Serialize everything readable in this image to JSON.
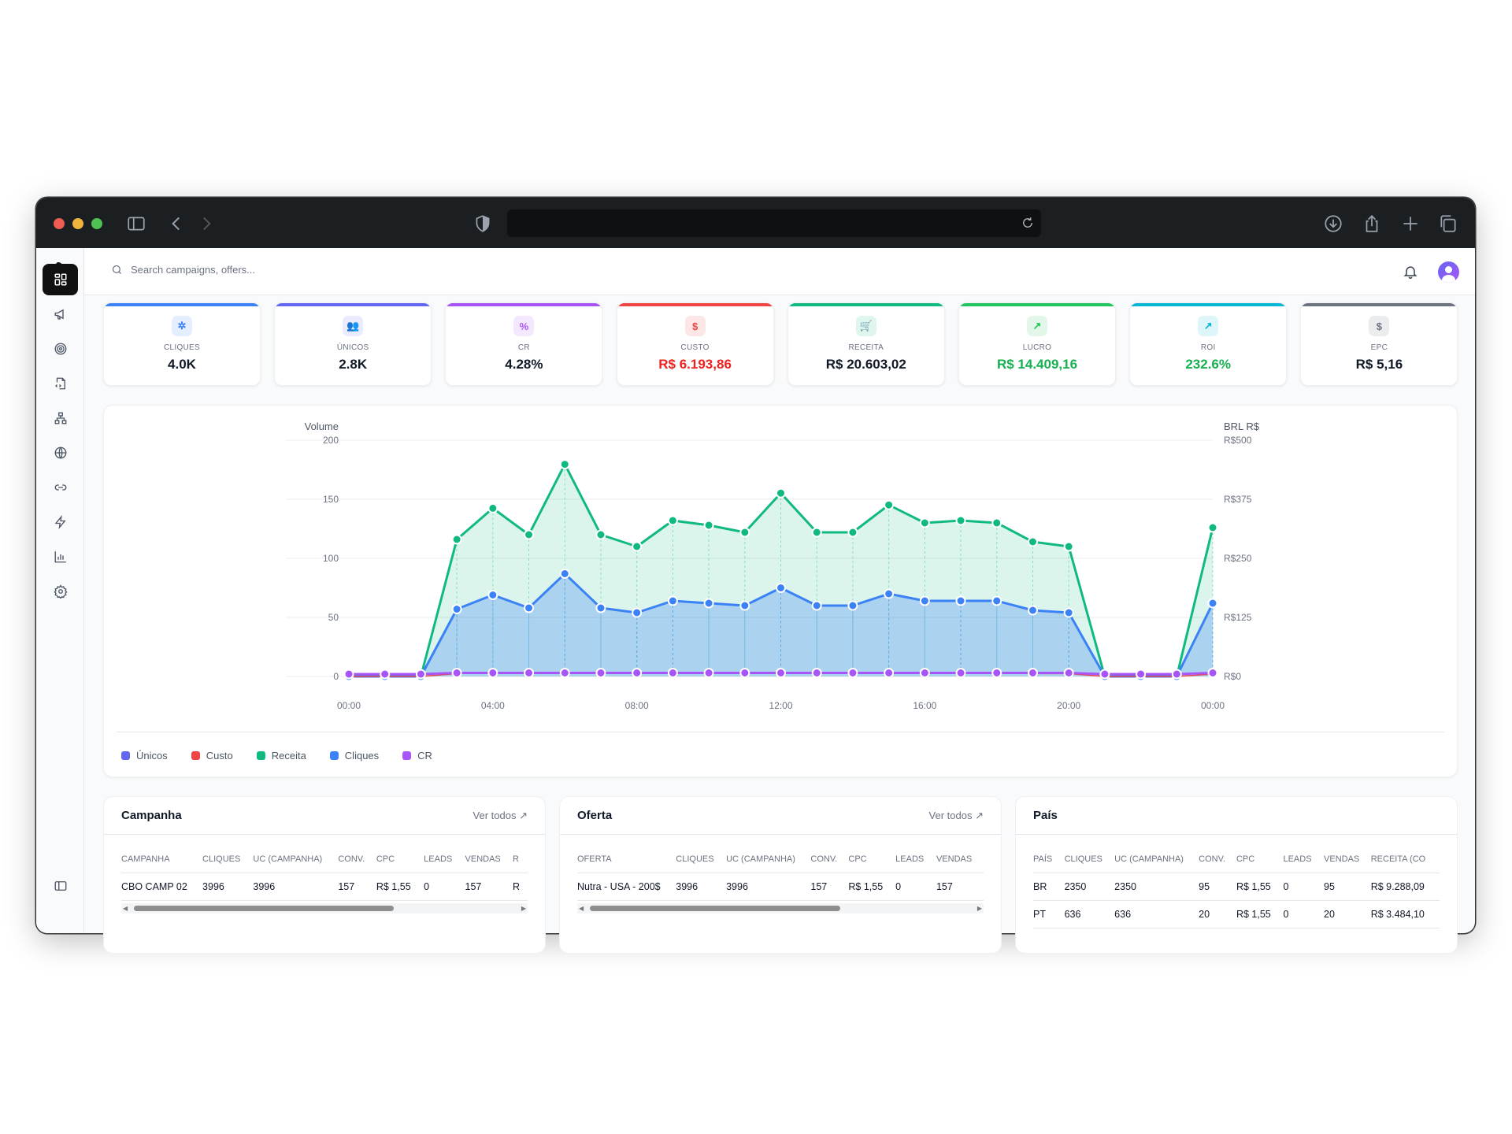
{
  "browser": {
    "traffic_lights": {
      "close": "#ee5c54",
      "minimize": "#f0b43e",
      "maximize": "#4fc254"
    }
  },
  "header": {
    "search_placeholder": "Search campaigns, offers...",
    "avatar_color": "#8b5cf6"
  },
  "sidebar": {
    "items": [
      "dashboard-icon",
      "megaphone-icon",
      "target-icon",
      "file-code-icon",
      "network-icon",
      "globe-icon",
      "link-icon",
      "zap-icon",
      "bar-chart-icon",
      "settings-icon"
    ],
    "active": "dashboard-icon"
  },
  "kpis": [
    {
      "label": "CLIQUES",
      "value": "4.0K",
      "color": "#3b82f6",
      "value_color": "#111827",
      "icon": "pointer-click-icon"
    },
    {
      "label": "ÚNICOS",
      "value": "2.8K",
      "color": "#6366f1",
      "value_color": "#111827",
      "icon": "users-icon"
    },
    {
      "label": "CR",
      "value": "4.28%",
      "color": "#a855f7",
      "value_color": "#111827",
      "icon": "percent-icon"
    },
    {
      "label": "CUSTO",
      "value": "R$ 6.193,86",
      "color": "#ef4444",
      "value_color": "#ef2020",
      "icon": "dollar-icon"
    },
    {
      "label": "RECEITA",
      "value": "R$ 20.603,02",
      "color": "#10b981",
      "value_color": "#111827",
      "icon": "cart-icon"
    },
    {
      "label": "LUCRO",
      "value": "R$ 14.409,16",
      "color": "#22c55e",
      "value_color": "#16b050",
      "icon": "trending-up-icon"
    },
    {
      "label": "ROI",
      "value": "232.6%",
      "color": "#06b6d4",
      "value_color": "#16b050",
      "icon": "arrow-up-right-icon"
    },
    {
      "label": "EPC",
      "value": "R$ 5,16",
      "color": "#6b7280",
      "value_color": "#111827",
      "icon": "dollar-icon"
    }
  ],
  "chart_data": {
    "type": "area",
    "y_left_title": "Volume",
    "y_right_title": "BRL R$",
    "ylim_left": [
      0,
      200
    ],
    "ylim_right": [
      0,
      500
    ],
    "y_left_ticks": [
      "0",
      "50",
      "100",
      "150",
      "200"
    ],
    "y_right_ticks": [
      "R$0",
      "R$125",
      "R$250",
      "R$375",
      "R$500"
    ],
    "x": [
      "00:00",
      "01:00",
      "02:00",
      "03:00",
      "04:00",
      "05:00",
      "06:00",
      "07:00",
      "08:00",
      "09:00",
      "10:00",
      "11:00",
      "12:00",
      "13:00",
      "14:00",
      "15:00",
      "16:00",
      "17:00",
      "18:00",
      "19:00",
      "20:00",
      "21:00",
      "22:00",
      "23:00",
      "00:00"
    ],
    "x_tick_labels": [
      "00:00",
      "04:00",
      "08:00",
      "12:00",
      "16:00",
      "20:00",
      "00:00"
    ],
    "grid": true,
    "legend_position": "bottom-left",
    "series": [
      {
        "name": "Únicos",
        "color": "#6366f1",
        "axis": "left",
        "values": null
      },
      {
        "name": "Custo",
        "color": "#ef4444",
        "axis": "right",
        "values": [
          0,
          0,
          0,
          6,
          7,
          6,
          9,
          7,
          6,
          7,
          7,
          6,
          8,
          7,
          7,
          7,
          7,
          7,
          7,
          6,
          6,
          0,
          0,
          0,
          5
        ]
      },
      {
        "name": "Receita",
        "color": "#10b981",
        "axis": "right",
        "values": [
          0,
          0,
          0,
          290,
          356,
          300,
          449,
          300,
          275,
          330,
          320,
          305,
          388,
          305,
          305,
          363,
          325,
          330,
          325,
          285,
          275,
          0,
          0,
          0,
          315
        ]
      },
      {
        "name": "Cliques",
        "color": "#3b82f6",
        "axis": "left",
        "values": [
          0,
          0,
          0,
          57,
          69,
          58,
          87,
          58,
          54,
          64,
          62,
          60,
          75,
          60,
          60,
          70,
          64,
          64,
          64,
          56,
          54,
          0,
          0,
          0,
          62
        ]
      },
      {
        "name": "CR",
        "color": "#a855f7",
        "axis": "left",
        "values": [
          2,
          2,
          2,
          3,
          3,
          3,
          3,
          3,
          3,
          3,
          3,
          3,
          3,
          3,
          3,
          3,
          3,
          3,
          3,
          3,
          3,
          2,
          2,
          2,
          3
        ]
      }
    ]
  },
  "tables": [
    {
      "title": "Campanha",
      "more": "Ver todos",
      "columns": [
        "CAMPANHA",
        "CLIQUES",
        "UC (CAMPANHA)",
        "CONV.",
        "CPC",
        "LEADS",
        "VENDAS",
        "R"
      ],
      "rows": [
        [
          "CBO CAMP 02",
          "3996",
          "3996",
          "157",
          "R$ 1,55",
          "0",
          "157",
          "R"
        ]
      ]
    },
    {
      "title": "Oferta",
      "more": "Ver todos",
      "columns": [
        "OFERTA",
        "CLIQUES",
        "UC (CAMPANHA)",
        "CONV.",
        "CPC",
        "LEADS",
        "VENDAS"
      ],
      "rows": [
        [
          "Nutra - USA - 200$",
          "3996",
          "3996",
          "157",
          "R$ 1,55",
          "0",
          "157"
        ]
      ]
    },
    {
      "title": "País",
      "more": "",
      "columns": [
        "PAÍS",
        "CLIQUES",
        "UC (CAMPANHA)",
        "CONV.",
        "CPC",
        "LEADS",
        "VENDAS",
        "RECEITA (CO"
      ],
      "rows": [
        [
          "BR",
          "2350",
          "2350",
          "95",
          "R$ 1,55",
          "0",
          "95",
          "R$ 9.288,09"
        ],
        [
          "PT",
          "636",
          "636",
          "20",
          "R$ 1,55",
          "0",
          "20",
          "R$ 3.484,10"
        ]
      ]
    }
  ]
}
